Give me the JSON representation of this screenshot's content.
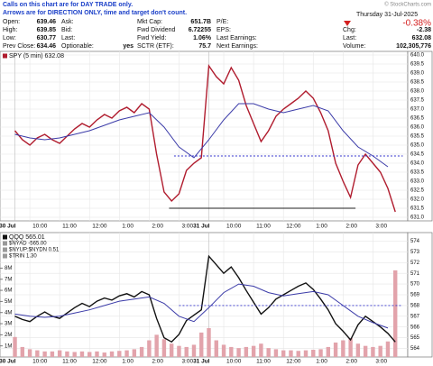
{
  "header": {
    "note": [
      "Calls on this chart are for DAY TRADE only.",
      "Arrows are for DIRECTION ONLY, time and target don't count."
    ],
    "copyright": "© StockCharts.com",
    "date": "Thursday 31-Jul-2025",
    "change_pct": "-0.38%",
    "columns": [
      [
        {
          "label": "Open:",
          "value": "639.46"
        },
        {
          "label": "High:",
          "value": "639.85"
        },
        {
          "label": "Low:",
          "value": "630.77"
        },
        {
          "label": "Prev Close:",
          "value": "634.46"
        }
      ],
      [
        {
          "label": "Ask:"
        },
        {
          "label": "Bid:"
        },
        {
          "label": "Last:"
        },
        {
          "label": "Optionable:",
          "value": "yes"
        }
      ],
      [
        {
          "label": "Mkt Cap:",
          "value": "651.7B"
        },
        {
          "label": "Fwd Dividend",
          "value": "6.72255"
        },
        {
          "label": "Fwd Yield:",
          "value": "1.06%"
        },
        {
          "label": "SCTR (ETF):",
          "value": "75.7"
        }
      ],
      [
        {
          "label": "P/E:"
        },
        {
          "label": "EPS:"
        },
        {
          "label": "Last Earnings:"
        },
        {
          "label": "Next Earnings:"
        }
      ],
      [
        {
          "label": "Chg:",
          "value": "-2.38"
        },
        {
          "label": "Last:",
          "value": "632.08"
        },
        {
          "label": "Volume:",
          "value": "102,305,776"
        }
      ]
    ]
  },
  "chart_data": [
    {
      "type": "line",
      "grid": true,
      "xlim": [
        -6,
        158
      ],
      "ylim": [
        630.8,
        640.2
      ],
      "xticks": [
        {
          "value": 0,
          "label": "30 Jul"
        },
        {
          "value": 6,
          "label": "10:00"
        },
        {
          "value": 18,
          "label": "11:00"
        },
        {
          "value": 30,
          "label": "12:00"
        },
        {
          "value": 42,
          "label": "1:00"
        },
        {
          "value": 54,
          "label": "2:00"
        },
        {
          "value": 66,
          "label": "3:00"
        },
        {
          "value": 78,
          "label": "31 Jul"
        },
        {
          "value": 84,
          "label": "10:00"
        },
        {
          "value": 96,
          "label": "11:00"
        },
        {
          "value": 108,
          "label": "12:00"
        },
        {
          "value": 120,
          "label": "1:00"
        },
        {
          "value": 132,
          "label": "2:00"
        },
        {
          "value": 144,
          "label": "3:00"
        }
      ],
      "yticks": [
        {
          "value": 631,
          "label": "631.0"
        },
        {
          "value": 631.5,
          "label": "631.5"
        },
        {
          "value": 632,
          "label": "632.0"
        },
        {
          "value": 632.5,
          "label": "632.5"
        },
        {
          "value": 633,
          "label": "633.0"
        },
        {
          "value": 633.5,
          "label": "633.5"
        },
        {
          "value": 634,
          "label": "634.0"
        },
        {
          "value": 634.5,
          "label": "634.5"
        },
        {
          "value": 635,
          "label": "635.0"
        },
        {
          "value": 635.5,
          "label": "635.5"
        },
        {
          "value": 636,
          "label": "636.0"
        },
        {
          "value": 636.5,
          "label": "636.5"
        },
        {
          "value": 637,
          "label": "637.0"
        },
        {
          "value": 637.5,
          "label": "637.5"
        },
        {
          "value": 638,
          "label": "638.0"
        },
        {
          "value": 638.5,
          "label": "638.5"
        },
        {
          "value": 639,
          "label": "639.0"
        },
        {
          "value": 639.5,
          "label": "639.5"
        },
        {
          "value": 640,
          "label": "640.0"
        }
      ],
      "series": [
        {
          "name": "SPY (5 min) 632.08",
          "color": "#b01c2e",
          "x": [
            0,
            3,
            6,
            9,
            12,
            15,
            18,
            21,
            24,
            27,
            30,
            33,
            36,
            39,
            42,
            45,
            48,
            51,
            54,
            57,
            60,
            63,
            66,
            69,
            72,
            75,
            78,
            81,
            84,
            87,
            90,
            93,
            96,
            99,
            102,
            105,
            108,
            111,
            114,
            117,
            120,
            123,
            126,
            129,
            132,
            135,
            138,
            141,
            144,
            147,
            150,
            153
          ],
          "values": [
            635.8,
            635.3,
            635.0,
            635.4,
            635.6,
            635.3,
            635.1,
            635.5,
            635.9,
            636.2,
            636.0,
            636.4,
            636.7,
            636.5,
            636.9,
            637.1,
            636.8,
            637.3,
            637.0,
            634.5,
            632.4,
            631.9,
            632.3,
            633.6,
            634.0,
            634.3,
            639.4,
            638.8,
            638.4,
            639.3,
            638.6,
            637.2,
            636.2,
            635.2,
            635.8,
            636.6,
            637.0,
            637.3,
            637.6,
            638.0,
            637.6,
            636.8,
            635.8,
            634.0,
            633.0,
            632.1,
            633.9,
            634.5,
            634.0,
            633.5,
            632.6,
            631.3
          ]
        },
        {
          "color": "#3b3ba8",
          "x": [
            0,
            6,
            12,
            18,
            24,
            30,
            36,
            42,
            48,
            54,
            60,
            66,
            72,
            78,
            84,
            90,
            96,
            102,
            108,
            114,
            120,
            126,
            132,
            138,
            144,
            150
          ],
          "values": [
            635.6,
            635.4,
            635.3,
            635.4,
            635.6,
            635.8,
            636.1,
            636.4,
            636.6,
            636.8,
            636.0,
            634.9,
            634.3,
            635.3,
            636.4,
            637.3,
            637.3,
            637.0,
            636.8,
            637.0,
            637.2,
            636.9,
            635.8,
            634.9,
            634.4,
            633.8
          ]
        }
      ],
      "levels": [
        {
          "y": 634.4,
          "x": [
            64,
            156
          ],
          "style": "dashed",
          "color": "#3333cc"
        },
        {
          "y": 631.5,
          "x": [
            62,
            137
          ],
          "style": "solid",
          "color": "#222222"
        }
      ]
    },
    {
      "type": "line",
      "grid": true,
      "xlim": [
        -6,
        158
      ],
      "ylim": [
        563.2,
        574.8
      ],
      "y2lim": [
        0,
        11200000
      ],
      "indicators": [
        "$NYAD -565.00",
        "$NYUP:$NYDN 0.51",
        "$TRIN 1.30"
      ],
      "xticks": [
        {
          "value": 0,
          "label": "30 Jul"
        },
        {
          "value": 6,
          "label": "10:00"
        },
        {
          "value": 18,
          "label": "11:00"
        },
        {
          "value": 30,
          "label": "12:00"
        },
        {
          "value": 42,
          "label": "1:00"
        },
        {
          "value": 54,
          "label": "2:00"
        },
        {
          "value": 66,
          "label": "3:00"
        },
        {
          "value": 78,
          "label": "31 Jul"
        },
        {
          "value": 84,
          "label": "10:00"
        },
        {
          "value": 96,
          "label": "11:00"
        },
        {
          "value": 108,
          "label": "12:00"
        },
        {
          "value": 120,
          "label": "1:00"
        },
        {
          "value": 132,
          "label": "2:00"
        },
        {
          "value": 144,
          "label": "3:00"
        }
      ],
      "yticks": [
        564,
        565,
        566,
        567,
        568,
        569,
        570,
        571,
        572,
        573,
        574
      ],
      "y2ticks": [
        {
          "value": 1000000,
          "label": "1M"
        },
        {
          "value": 2000000,
          "label": "2M"
        },
        {
          "value": 3000000,
          "label": "3M"
        },
        {
          "value": 4000000,
          "label": "4M"
        },
        {
          "value": 5000000,
          "label": "5M"
        },
        {
          "value": 6000000,
          "label": "6M"
        },
        {
          "value": 7000000,
          "label": "7M"
        },
        {
          "value": 8000000,
          "label": "8M"
        }
      ],
      "series": [
        {
          "type": "bar",
          "axis": "y2",
          "color": "#e2a3ab",
          "x": [
            0,
            3,
            6,
            9,
            12,
            15,
            18,
            21,
            24,
            27,
            30,
            33,
            36,
            39,
            42,
            45,
            48,
            51,
            54,
            57,
            60,
            63,
            66,
            69,
            72,
            75,
            78,
            81,
            84,
            87,
            90,
            93,
            96,
            99,
            102,
            105,
            108,
            111,
            114,
            117,
            120,
            123,
            126,
            129,
            132,
            135,
            138,
            141,
            144,
            147,
            150,
            153
          ],
          "values": [
            1800000,
            900000,
            700000,
            600000,
            500000,
            500000,
            600000,
            500000,
            450000,
            500000,
            450000,
            500000,
            400000,
            500000,
            550000,
            600000,
            700000,
            900000,
            1500000,
            2000000,
            1600000,
            1200000,
            1000000,
            900000,
            1100000,
            2200000,
            2600000,
            1500000,
            1100000,
            900000,
            800000,
            900000,
            1000000,
            1200000,
            800000,
            700000,
            600000,
            600000,
            550000,
            600000,
            650000,
            700000,
            900000,
            1300000,
            1500000,
            1700000,
            1200000,
            1000000,
            900000,
            1000000,
            1400000,
            7800000
          ]
        },
        {
          "name": "QQQ 565.01",
          "color": "#111111",
          "x": [
            0,
            3,
            6,
            9,
            12,
            15,
            18,
            21,
            24,
            27,
            30,
            33,
            36,
            39,
            42,
            45,
            48,
            51,
            54,
            57,
            60,
            63,
            66,
            69,
            72,
            75,
            78,
            81,
            84,
            87,
            90,
            93,
            96,
            99,
            102,
            105,
            108,
            111,
            114,
            117,
            120,
            123,
            126,
            129,
            132,
            135,
            138,
            141,
            144,
            147,
            150,
            153
          ],
          "values": [
            567.0,
            566.7,
            566.5,
            567.0,
            567.4,
            567.0,
            566.8,
            567.3,
            567.8,
            568.2,
            567.9,
            568.4,
            568.7,
            568.5,
            568.9,
            569.1,
            568.8,
            569.3,
            569.0,
            566.8,
            565.0,
            564.6,
            565.3,
            566.6,
            567.1,
            567.6,
            572.6,
            571.8,
            571.0,
            571.6,
            570.6,
            569.4,
            568.3,
            567.2,
            567.8,
            568.6,
            569.0,
            569.4,
            569.8,
            570.1,
            569.5,
            568.6,
            567.6,
            566.3,
            565.6,
            564.8,
            566.2,
            567.0,
            566.5,
            566.0,
            565.4,
            564.6
          ]
        },
        {
          "color": "#3b3ba8",
          "x": [
            0,
            6,
            12,
            18,
            24,
            30,
            36,
            42,
            48,
            54,
            60,
            66,
            72,
            78,
            84,
            90,
            96,
            102,
            108,
            114,
            120,
            126,
            132,
            138,
            144,
            150
          ],
          "values": [
            567.2,
            567.0,
            566.9,
            567.0,
            567.3,
            567.6,
            568.0,
            568.4,
            568.6,
            568.8,
            568.2,
            567.0,
            566.5,
            567.8,
            569.2,
            570.0,
            569.8,
            569.2,
            568.9,
            569.1,
            569.3,
            569.0,
            568.0,
            567.0,
            566.4,
            565.9
          ]
        }
      ],
      "levels": [
        {
          "y": 568,
          "x": [
            66,
            156
          ],
          "style": "dashed",
          "color": "#3333cc"
        }
      ]
    }
  ]
}
